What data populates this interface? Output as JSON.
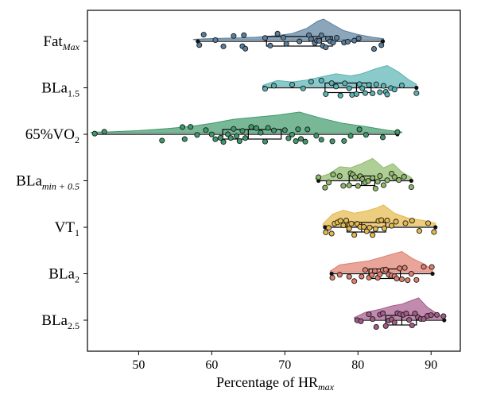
{
  "chart_data": {
    "type": "raincloud",
    "title": "",
    "xlabel": "Percentage of HR",
    "xlabel_sub": "max",
    "xlim": [
      43,
      94
    ],
    "xticks": [
      50,
      60,
      70,
      80,
      90
    ],
    "categories": [
      {
        "main": "Fat",
        "sub": "Max",
        "sub_italic": true,
        "color": "#5a7f9e",
        "min": 58.1,
        "q1": 67.5,
        "median": 75.0,
        "q3": 76.5,
        "max": 83.4,
        "points": [
          58.3,
          58.9,
          60.5,
          61.6,
          63.0,
          64.2,
          64.4,
          64.6,
          67.3,
          68.0,
          69.0,
          69.8,
          70.2,
          72.0,
          73.3,
          73.6,
          74.1,
          74.4,
          74.7,
          75.0,
          75.2,
          75.6,
          75.9,
          76.2,
          76.6,
          77.1,
          78.1,
          78.6,
          79.5,
          80.1,
          82.2,
          83.2
        ],
        "density": [
          [
            57.5,
            0.02
          ],
          [
            60,
            0.06
          ],
          [
            63,
            0.08
          ],
          [
            66,
            0.12
          ],
          [
            69,
            0.2
          ],
          [
            71,
            0.3
          ],
          [
            73,
            0.55
          ],
          [
            74.5,
            0.9
          ],
          [
            75.3,
            1.0
          ],
          [
            76.5,
            0.75
          ],
          [
            78,
            0.45
          ],
          [
            80,
            0.25
          ],
          [
            82,
            0.12
          ],
          [
            83.5,
            0.05
          ]
        ]
      },
      {
        "main": "BLa",
        "sub": "1.5",
        "sub_italic": false,
        "color": "#5ab3b5",
        "min": 67.2,
        "q1": 75.5,
        "median": 79.8,
        "q3": 81.8,
        "max": 88.0,
        "points": [
          67.3,
          68.5,
          71.0,
          72.5,
          73.6,
          75.0,
          75.6,
          76.4,
          77.0,
          77.6,
          78.2,
          78.8,
          79.2,
          79.8,
          80.2,
          80.6,
          81.0,
          81.5,
          82.0,
          82.5,
          83.0,
          83.5,
          83.8,
          84.0,
          84.5,
          85.0,
          86.0,
          88.0
        ],
        "density": [
          [
            67,
            0.05
          ],
          [
            69,
            0.28
          ],
          [
            71,
            0.2
          ],
          [
            73,
            0.3
          ],
          [
            75,
            0.45
          ],
          [
            77,
            0.6
          ],
          [
            79,
            0.5
          ],
          [
            80.5,
            0.6
          ],
          [
            82.5,
            0.85
          ],
          [
            84,
            1.0
          ],
          [
            85.5,
            0.7
          ],
          [
            87,
            0.3
          ],
          [
            88,
            0.1
          ]
        ]
      },
      {
        "main": "65%VO",
        "sub": "2",
        "sub_italic": false,
        "color": "#3f9a6b",
        "min": 44.0,
        "q1": 61.5,
        "median": 65.0,
        "q3": 69.5,
        "max": 85.4,
        "points": [
          44.0,
          45.3,
          53.2,
          56.0,
          56.3,
          57.1,
          58.0,
          59.2,
          60.0,
          60.5,
          61.2,
          61.6,
          62.2,
          62.6,
          63.0,
          63.4,
          63.8,
          64.2,
          64.6,
          65.4,
          66.1,
          66.7,
          67.3,
          67.7,
          68.5,
          70.0,
          70.5,
          71.0,
          71.5,
          71.8,
          72.2,
          72.8,
          73.1,
          74.3,
          75.0,
          76.5,
          78.1,
          79.0,
          80.2,
          81.1,
          83.4,
          85.4
        ],
        "density": [
          [
            43.5,
            0.02
          ],
          [
            46,
            0.04
          ],
          [
            50,
            0.1
          ],
          [
            54,
            0.2
          ],
          [
            57,
            0.3
          ],
          [
            60,
            0.45
          ],
          [
            63,
            0.65
          ],
          [
            66,
            0.75
          ],
          [
            69,
            0.85
          ],
          [
            72,
            1.0
          ],
          [
            75,
            0.7
          ],
          [
            78,
            0.45
          ],
          [
            81,
            0.3
          ],
          [
            84,
            0.12
          ],
          [
            86,
            0.03
          ]
        ]
      },
      {
        "main": "BLa",
        "sub": "min + 0.5",
        "sub_italic": true,
        "color": "#8fba6a",
        "min": 74.6,
        "q1": 78.8,
        "median": 80.5,
        "q3": 82.3,
        "max": 87.3,
        "points": [
          74.6,
          75.5,
          76.0,
          76.6,
          77.5,
          78.0,
          78.8,
          79.0,
          79.3,
          79.6,
          80.0,
          80.3,
          80.6,
          81.0,
          81.4,
          82.0,
          82.4,
          82.7,
          83.0,
          83.5,
          84.0,
          84.6,
          85.0,
          85.6,
          86.3,
          87.3
        ],
        "density": [
          [
            74.2,
            0.05
          ],
          [
            76,
            0.25
          ],
          [
            77.5,
            0.6
          ],
          [
            79,
            0.55
          ],
          [
            80.5,
            0.75
          ],
          [
            82,
            1.0
          ],
          [
            83.5,
            0.55
          ],
          [
            84.8,
            0.75
          ],
          [
            86,
            0.35
          ],
          [
            87.3,
            0.08
          ]
        ]
      },
      {
        "main": "VT",
        "sub": "1",
        "sub_italic": false,
        "color": "#e6b84a",
        "min": 75.5,
        "q1": 78.5,
        "median": 80.5,
        "q3": 83.8,
        "max": 90.6,
        "points": [
          75.6,
          76.0,
          76.4,
          76.8,
          77.2,
          77.6,
          78.0,
          78.4,
          78.8,
          79.1,
          79.5,
          79.9,
          80.3,
          80.8,
          81.2,
          81.6,
          82.0,
          82.4,
          82.8,
          83.2,
          83.6,
          84.0,
          84.6,
          85.2,
          86.5,
          87.4,
          88.4,
          89.6,
          90.4
        ],
        "density": [
          [
            75.2,
            0.08
          ],
          [
            76.5,
            0.55
          ],
          [
            78,
            0.75
          ],
          [
            79.5,
            0.6
          ],
          [
            81,
            0.7
          ],
          [
            82.5,
            0.85
          ],
          [
            83.5,
            1.0
          ],
          [
            85,
            0.6
          ],
          [
            87,
            0.35
          ],
          [
            89,
            0.25
          ],
          [
            90.6,
            0.12
          ]
        ]
      },
      {
        "main": "BLa",
        "sub": "2",
        "sub_italic": false,
        "color": "#e07f6e",
        "min": 76.4,
        "q1": 81.5,
        "median": 84.2,
        "q3": 85.8,
        "max": 90.2,
        "points": [
          76.5,
          77.5,
          78.8,
          79.5,
          80.5,
          81.0,
          81.5,
          81.9,
          82.3,
          82.7,
          83.0,
          83.4,
          83.8,
          84.2,
          84.6,
          85.0,
          85.3,
          85.7,
          86.0,
          86.4,
          86.8,
          87.3,
          88.0,
          89.0,
          90.1
        ],
        "density": [
          [
            76.2,
            0.05
          ],
          [
            77.5,
            0.35
          ],
          [
            79.5,
            0.45
          ],
          [
            81.5,
            0.55
          ],
          [
            83,
            0.7
          ],
          [
            84.5,
            0.85
          ],
          [
            86,
            1.0
          ],
          [
            87.5,
            0.65
          ],
          [
            89,
            0.4
          ],
          [
            90.2,
            0.1
          ]
        ]
      },
      {
        "main": "BLa",
        "sub": "2.5",
        "sub_italic": false,
        "color": "#a65a8c",
        "min": 79.8,
        "q1": 83.8,
        "median": 86.0,
        "q3": 88.0,
        "max": 91.8,
        "points": [
          79.9,
          80.4,
          81.5,
          82.0,
          82.5,
          83.0,
          83.4,
          83.8,
          84.2,
          84.6,
          85.0,
          85.4,
          85.8,
          86.2,
          86.6,
          87.0,
          87.4,
          87.8,
          88.2,
          88.6,
          89.0,
          89.5,
          90.0,
          90.8,
          91.7
        ],
        "density": [
          [
            79.5,
            0.05
          ],
          [
            81,
            0.3
          ],
          [
            83,
            0.45
          ],
          [
            84.5,
            0.6
          ],
          [
            86,
            0.7
          ],
          [
            87.5,
            0.9
          ],
          [
            88.3,
            1.0
          ],
          [
            89.5,
            0.55
          ],
          [
            91,
            0.2
          ],
          [
            91.8,
            0.05
          ]
        ]
      }
    ]
  }
}
